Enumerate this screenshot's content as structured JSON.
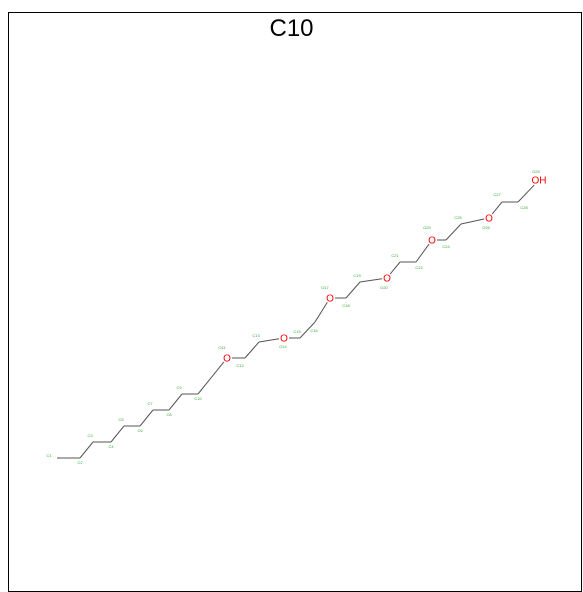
{
  "title": "C10",
  "colors": {
    "frame": "#000000",
    "bond": "#555555",
    "oxygen": "#ff0000",
    "atom_label": "#33aa33"
  },
  "atoms": [
    {
      "id": "C1",
      "label": "C1",
      "element": "C"
    },
    {
      "id": "C2",
      "label": "C2",
      "element": "C"
    },
    {
      "id": "C3",
      "label": "C3",
      "element": "C"
    },
    {
      "id": "C4",
      "label": "C4",
      "element": "C"
    },
    {
      "id": "C5",
      "label": "C5",
      "element": "C"
    },
    {
      "id": "C6",
      "label": "C6",
      "element": "C"
    },
    {
      "id": "C7",
      "label": "C7",
      "element": "C"
    },
    {
      "id": "C8",
      "label": "C8",
      "element": "C"
    },
    {
      "id": "C9",
      "label": "C9",
      "element": "C"
    },
    {
      "id": "C10",
      "label": "C10",
      "element": "C"
    },
    {
      "id": "O11",
      "label": "O11",
      "element": "O",
      "symbol": "O"
    },
    {
      "id": "C12",
      "label": "C12",
      "element": "C"
    },
    {
      "id": "C13",
      "label": "C13",
      "element": "C"
    },
    {
      "id": "O14",
      "label": "O14",
      "element": "O",
      "symbol": "O"
    },
    {
      "id": "C15",
      "label": "C15",
      "element": "C"
    },
    {
      "id": "C16",
      "label": "C16",
      "element": "C"
    },
    {
      "id": "O17",
      "label": "O17",
      "element": "O",
      "symbol": "O"
    },
    {
      "id": "C18",
      "label": "C18",
      "element": "C"
    },
    {
      "id": "C19",
      "label": "C19",
      "element": "C"
    },
    {
      "id": "O20",
      "label": "O20",
      "element": "O",
      "symbol": "O"
    },
    {
      "id": "C21",
      "label": "C21",
      "element": "C"
    },
    {
      "id": "C22",
      "label": "C22",
      "element": "C"
    },
    {
      "id": "O23",
      "label": "O23",
      "element": "O",
      "symbol": "O"
    },
    {
      "id": "C24",
      "label": "C24",
      "element": "C"
    },
    {
      "id": "C25",
      "label": "C25",
      "element": "C"
    },
    {
      "id": "O26",
      "label": "O26",
      "element": "O",
      "symbol": "O"
    },
    {
      "id": "C27",
      "label": "C27",
      "element": "C"
    },
    {
      "id": "C28",
      "label": "C28",
      "element": "C"
    },
    {
      "id": "O29",
      "label": "O29",
      "element": "O",
      "symbol": "OH"
    }
  ]
}
